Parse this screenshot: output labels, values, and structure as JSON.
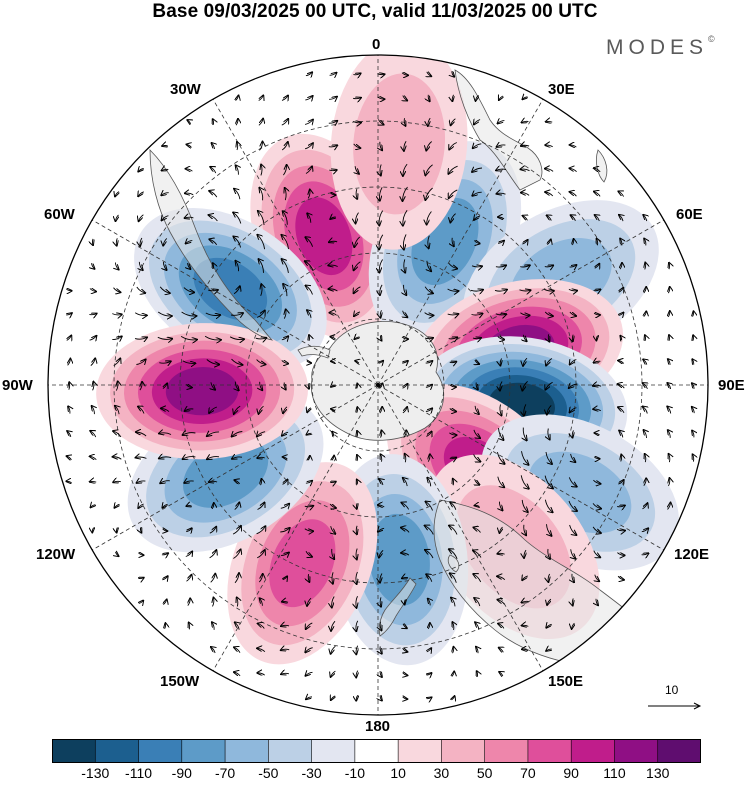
{
  "title": "Base 09/03/2025 00 UTC, valid 11/03/2025 00 UTC",
  "brand": "MODES",
  "brand_mark": "©",
  "longitude_labels": {
    "n0": "0",
    "n30e": "30E",
    "n60e": "60E",
    "n90e": "90E",
    "n120e": "120E",
    "n150e": "150E",
    "n180": "180",
    "n150w": "150W",
    "n120w": "120W",
    "n90w": "90W",
    "n60w": "60W",
    "n30w": "30W"
  },
  "reference_vector": "10",
  "colorbar": {
    "ticks": [
      "-130",
      "-110",
      "-90",
      "-70",
      "-50",
      "-30",
      "-10",
      "10",
      "30",
      "50",
      "70",
      "90",
      "110",
      "130"
    ],
    "colors": [
      "#0d3f5e",
      "#1c5f8f",
      "#3a7fb6",
      "#5d9bc8",
      "#8fb8dc",
      "#bcd0e6",
      "#e3e6f1",
      "#ffffff",
      "#f9d8de",
      "#f4b3c3",
      "#ee86ab",
      "#df4f9b",
      "#c01d8b",
      "#8f0f84",
      "#5f0d6f"
    ]
  },
  "anomalies": [
    {
      "name": "pos-south-atlantic",
      "lon": -20,
      "colat": 36,
      "value": 95
    },
    {
      "name": "neg-south-atlantic-east",
      "lon": 25,
      "colat": 36,
      "value": -75
    },
    {
      "name": "neg-south-america",
      "lon": -57,
      "colat": 40,
      "value": -100
    },
    {
      "name": "neg-south-africa-east",
      "lon": 60,
      "colat": 48,
      "value": -55
    },
    {
      "name": "pos-indian-ocean",
      "lon": 76,
      "colat": 33,
      "value": 125
    },
    {
      "name": "neg-indian-ocean",
      "lon": 98,
      "colat": 33,
      "value": -130
    },
    {
      "name": "pos-southern-australia",
      "lon": 130,
      "colat": 30,
      "value": 100
    },
    {
      "name": "neg-australia-east",
      "lon": 118,
      "colat": 52,
      "value": -50
    },
    {
      "name": "pos-eastern-australia",
      "lon": 140,
      "colat": 48,
      "value": 45
    },
    {
      "name": "neg-new-zealand",
      "lon": 173,
      "colat": 40,
      "value": -70
    },
    {
      "name": "pos-south-pacific",
      "lon": -157,
      "colat": 44,
      "value": 85
    },
    {
      "name": "neg-south-pacific",
      "lon": -120,
      "colat": 40,
      "value": -75
    },
    {
      "name": "pos-southeast-pacific",
      "lon": -92,
      "colat": 40,
      "value": 120
    },
    {
      "name": "pos-south-atlantic-far",
      "lon": 5,
      "colat": 55,
      "value": 30
    }
  ]
}
